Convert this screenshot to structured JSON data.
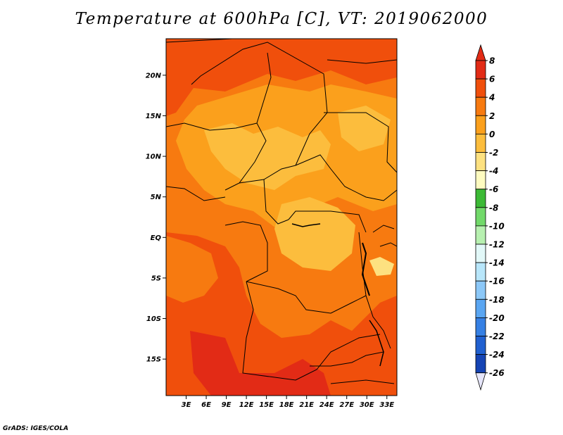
{
  "title": "Temperature at 600hPa [C], VT: 2019062000",
  "credit": "GrADS: IGES/COLA",
  "map": {
    "lat_range": [
      -19.5,
      24.5
    ],
    "lon_range": [
      0,
      34.5
    ],
    "lat_labels": [
      {
        "lat": 20,
        "label": "20N"
      },
      {
        "lat": 15,
        "label": "15N"
      },
      {
        "lat": 10,
        "label": "10N"
      },
      {
        "lat": 5,
        "label": "5N"
      },
      {
        "lat": 0,
        "label": "EQ"
      },
      {
        "lat": -5,
        "label": "5S"
      },
      {
        "lat": -10,
        "label": "10S"
      },
      {
        "lat": -15,
        "label": "15S"
      }
    ],
    "lon_labels": [
      {
        "lon": 3,
        "label": "3E"
      },
      {
        "lon": 6,
        "label": "6E"
      },
      {
        "lon": 9,
        "label": "9E"
      },
      {
        "lon": 12,
        "label": "12E"
      },
      {
        "lon": 15,
        "label": "15E"
      },
      {
        "lon": 18,
        "label": "18E"
      },
      {
        "lon": 21,
        "label": "21E"
      },
      {
        "lon": 24,
        "label": "24E"
      },
      {
        "lon": 27,
        "label": "27E"
      },
      {
        "lon": 30,
        "label": "30E"
      },
      {
        "lon": 33,
        "label": "33E"
      }
    ]
  },
  "colorbar": {
    "levels": [
      "8",
      "6",
      "4",
      "2",
      "0",
      "-2",
      "-4",
      "-6",
      "-8",
      "-10",
      "-12",
      "-14",
      "-16",
      "-18",
      "-20",
      "-22",
      "-24",
      "-26"
    ],
    "colors": [
      "#e22b16",
      "#f04f0c",
      "#f77a10",
      "#fba01c",
      "#fcbd3d",
      "#fde180",
      "#fefbc0",
      "#3cba36",
      "#72d96a",
      "#b7f0b0",
      "#e2f8f8",
      "#b8e6fa",
      "#8cc8f8",
      "#5aa6f2",
      "#3680e4",
      "#2060d0",
      "#1544b4",
      "#0f2696",
      "#0c0c70"
    ],
    "top_triangle_color": "#e22b16",
    "bottom_triangle_color": "#e6e6fa"
  },
  "legend": {
    "field_colors": {
      "warmest": "#e22b16",
      "warm": "#f04f0c",
      "mid": "#f77a10",
      "mild": "#fba01c",
      "cool": "#fcbd3d",
      "coolest": "#fde180"
    }
  }
}
